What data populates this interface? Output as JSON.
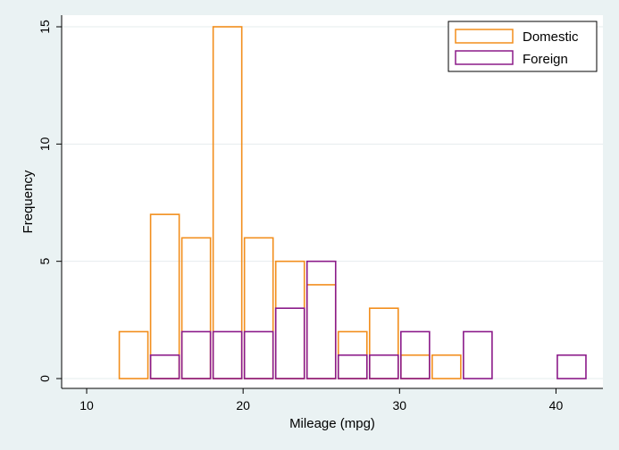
{
  "chart_data": {
    "type": "bar",
    "title": "",
    "xlabel": "Mileage (mpg)",
    "ylabel": "Frequency",
    "xlim": [
      8,
      43
    ],
    "ylim": [
      0,
      15
    ],
    "xticks": [
      "10",
      "20",
      "30",
      "40"
    ],
    "yticks": [
      "0",
      "5",
      "10",
      "15"
    ],
    "grid": true,
    "legend_position": "top-right",
    "series": [
      {
        "name": "Domestic",
        "color": "#f28e1c",
        "bins": [
          {
            "x0": 12,
            "x1": 14,
            "value": 2
          },
          {
            "x0": 14,
            "x1": 16,
            "value": 7
          },
          {
            "x0": 16,
            "x1": 18,
            "value": 6
          },
          {
            "x0": 18,
            "x1": 20,
            "value": 15
          },
          {
            "x0": 20,
            "x1": 22,
            "value": 6
          },
          {
            "x0": 22,
            "x1": 24,
            "value": 5
          },
          {
            "x0": 24,
            "x1": 26,
            "value": 4
          },
          {
            "x0": 26,
            "x1": 28,
            "value": 2
          },
          {
            "x0": 28,
            "x1": 30,
            "value": 3
          },
          {
            "x0": 30,
            "x1": 32,
            "value": 1
          },
          {
            "x0": 32,
            "x1": 34,
            "value": 1
          }
        ]
      },
      {
        "name": "Foreign",
        "color": "#8b1a89",
        "bins": [
          {
            "x0": 14,
            "x1": 16,
            "value": 1
          },
          {
            "x0": 16,
            "x1": 18,
            "value": 2
          },
          {
            "x0": 18,
            "x1": 20,
            "value": 2
          },
          {
            "x0": 20,
            "x1": 22,
            "value": 2
          },
          {
            "x0": 22,
            "x1": 24,
            "value": 3
          },
          {
            "x0": 24,
            "x1": 26,
            "value": 5
          },
          {
            "x0": 26,
            "x1": 28,
            "value": 1
          },
          {
            "x0": 28,
            "x1": 30,
            "value": 1
          },
          {
            "x0": 30,
            "x1": 32,
            "value": 2
          },
          {
            "x0": 34,
            "x1": 36,
            "value": 2
          },
          {
            "x0": 40,
            "x1": 42,
            "value": 1
          }
        ]
      }
    ]
  }
}
